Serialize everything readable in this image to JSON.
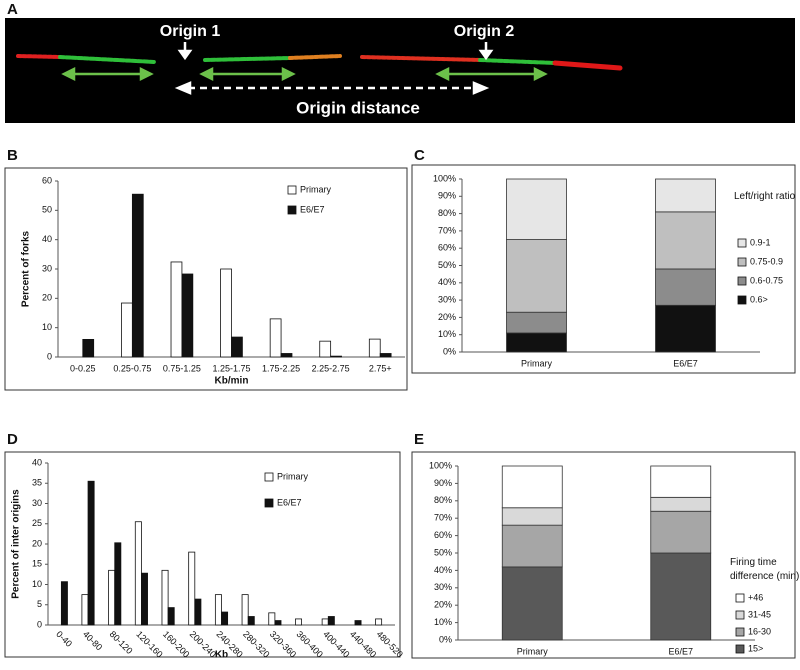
{
  "panel_a": {
    "letter": "A",
    "origin_1": "Origin 1",
    "origin_2": "Origin 2",
    "distance": "Origin distance"
  },
  "chart_data": [
    {
      "panel": "B",
      "type": "bar",
      "stacked": false,
      "xlabel": "Kb/min",
      "ylabel": "Percent of forks",
      "categories": [
        "0-0.25",
        "0.25-0.75",
        "0.75-1.25",
        "1.25-1.75",
        "1.75-2.25",
        "2.25-2.75",
        "2.75+"
      ],
      "series": [
        {
          "name": "Primary",
          "color": "#ffffff",
          "values": [
            0,
            18.4,
            32.4,
            30,
            13,
            5.4,
            6.1
          ]
        },
        {
          "name": "E6/E7",
          "color": "#111111",
          "values": [
            6,
            55.5,
            28.3,
            6.8,
            1.2,
            0.3,
            1.2
          ]
        }
      ],
      "ylim": [
        0,
        60
      ],
      "yticks": [
        0,
        10,
        20,
        30,
        40,
        50,
        60
      ],
      "grid": false,
      "legend": "top-right"
    },
    {
      "panel": "C",
      "type": "bar",
      "stacked": true,
      "legend_title": "Left/right ratio",
      "categories": [
        "Primary",
        "E6/E7"
      ],
      "series": [
        {
          "name": "0.6>",
          "color": "#111111",
          "values": [
            11,
            27
          ]
        },
        {
          "name": "0.6-0.75",
          "color": "#8c8c8c",
          "values": [
            12,
            21
          ]
        },
        {
          "name": "0.75-0.9",
          "color": "#bfbfbf",
          "values": [
            42,
            33
          ]
        },
        {
          "name": "0.9-1",
          "color": "#e6e6e6",
          "values": [
            35,
            19
          ]
        }
      ],
      "ylim": [
        0,
        100
      ],
      "yticks": [
        {
          "value": 0,
          "label": "0%"
        },
        {
          "value": 10,
          "label": "10%"
        },
        {
          "value": 20,
          "label": "20%"
        },
        {
          "value": 30,
          "label": "30%"
        },
        {
          "value": 40,
          "label": "40%"
        },
        {
          "value": 50,
          "label": "50%"
        },
        {
          "value": 60,
          "label": "60%"
        },
        {
          "value": 70,
          "label": "70%"
        },
        {
          "value": 80,
          "label": "80%"
        },
        {
          "value": 90,
          "label": "90%"
        },
        {
          "value": 100,
          "label": "100%"
        }
      ],
      "grid": false,
      "legend": "right"
    },
    {
      "panel": "D",
      "type": "bar",
      "stacked": false,
      "xlabel": "Kb",
      "ylabel": "Percent of inter origins",
      "categories": [
        "0-40",
        "40-80",
        "80-120",
        "120-160",
        "160-200",
        "200-240",
        "240-280",
        "280-320",
        "320-360",
        "360-400",
        "400-440",
        "440-480",
        "480-520"
      ],
      "series": [
        {
          "name": "Primary",
          "color": "#ffffff",
          "values": [
            0,
            7.5,
            13.5,
            25.5,
            13.5,
            18,
            7.5,
            7.5,
            3,
            1.5,
            1.5,
            0,
            1.5
          ]
        },
        {
          "name": "E6/E7",
          "color": "#111111",
          "values": [
            10.7,
            35.5,
            20.3,
            12.8,
            4.3,
            6.4,
            3.2,
            2.1,
            1.1,
            0,
            2.1,
            1.1,
            0
          ]
        }
      ],
      "ylim": [
        0,
        40
      ],
      "yticks": [
        0,
        5,
        10,
        15,
        20,
        25,
        30,
        35,
        40
      ],
      "grid": false,
      "legend": "top-right"
    },
    {
      "panel": "E",
      "type": "bar",
      "stacked": true,
      "legend_title": "Firing time difference (min)",
      "categories": [
        "Primary",
        "E6/E7"
      ],
      "series": [
        {
          "name": "15>",
          "color": "#595959",
          "values": [
            42,
            50
          ]
        },
        {
          "name": "16-30",
          "color": "#a6a6a6",
          "values": [
            24,
            24
          ]
        },
        {
          "name": "31-45",
          "color": "#d9d9d9",
          "values": [
            10,
            8
          ]
        },
        {
          "name": "+46",
          "color": "#ffffff",
          "values": [
            24,
            18
          ]
        }
      ],
      "ylim": [
        0,
        100
      ],
      "yticks": [
        {
          "value": 0,
          "label": "0%"
        },
        {
          "value": 10,
          "label": "10%"
        },
        {
          "value": 20,
          "label": "20%"
        },
        {
          "value": 30,
          "label": "30%"
        },
        {
          "value": 40,
          "label": "40%"
        },
        {
          "value": 50,
          "label": "50%"
        },
        {
          "value": 60,
          "label": "60%"
        },
        {
          "value": 70,
          "label": "70%"
        },
        {
          "value": 80,
          "label": "80%"
        },
        {
          "value": 90,
          "label": "90%"
        },
        {
          "value": 100,
          "label": "100%"
        }
      ],
      "grid": false,
      "legend": "right"
    }
  ]
}
